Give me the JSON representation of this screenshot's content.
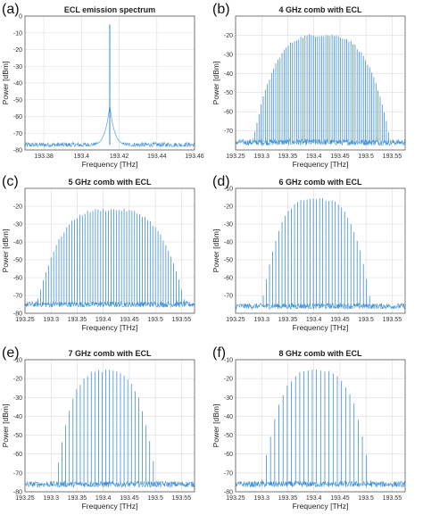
{
  "chart_data": [
    {
      "panel": "(a)",
      "type": "line",
      "title": "ECL emission spectrum",
      "xlabel": "Frequency [THz]",
      "ylabel": "Power [dBm]",
      "xlim": [
        193.37,
        193.46
      ],
      "ylim": [
        -80,
        0
      ],
      "xticks": [
        "193.38",
        "193.4",
        "193.42",
        "193.44",
        "193.46"
      ],
      "xtick_values": [
        193.38,
        193.4,
        193.42,
        193.44,
        193.46
      ],
      "yticks": [
        "0",
        "-10",
        "-20",
        "-30",
        "-40",
        "-50",
        "-60",
        "-70",
        "-80"
      ],
      "ytick_values": [
        0,
        -10,
        -20,
        -30,
        -40,
        -50,
        -60,
        -70,
        -80
      ],
      "grid": true,
      "line_center": 193.415,
      "line_peak": -5,
      "noise_floor": -77,
      "color": "#3d8fd6"
    },
    {
      "panel": "(b)",
      "type": "line",
      "title": "4 GHz comb with ECL",
      "xlabel": "Frequency [THz]",
      "ylabel": "Power [dBm]",
      "xlim": [
        193.25,
        193.575
      ],
      "ylim": [
        -80,
        -10
      ],
      "xticks": [
        "193.25",
        "193.3",
        "193.35",
        "193.4",
        "193.45",
        "193.5",
        "193.55"
      ],
      "xtick_values": [
        193.25,
        193.3,
        193.35,
        193.4,
        193.45,
        193.5,
        193.55
      ],
      "yticks": [
        "-20",
        "-30",
        "-40",
        "-50",
        "-60",
        "-70"
      ],
      "ytick_values": [
        -20,
        -30,
        -40,
        -50,
        -60,
        -70
      ],
      "grid": true,
      "spacing_ghz": 4,
      "comb_center": 193.415,
      "comb_range": [
        193.28,
        193.545
      ],
      "peak_power": -20,
      "noise_floor": -76,
      "color": "#3d8fd6"
    },
    {
      "panel": "(c)",
      "type": "line",
      "title": "5 GHz comb with ECL",
      "xlabel": "Frequency [THz]",
      "ylabel": "Power [dBm]",
      "xlim": [
        193.25,
        193.575
      ],
      "ylim": [
        -80,
        -10
      ],
      "xticks": [
        "193.25",
        "193.3",
        "193.35",
        "193.4",
        "193.45",
        "193.5",
        "193.55"
      ],
      "xtick_values": [
        193.25,
        193.3,
        193.35,
        193.4,
        193.45,
        193.5,
        193.55
      ],
      "yticks": [
        "-20",
        "-30",
        "-40",
        "-50",
        "-60",
        "-70",
        "-80"
      ],
      "ytick_values": [
        -20,
        -30,
        -40,
        -50,
        -60,
        -70,
        -80
      ],
      "grid": true,
      "spacing_ghz": 5,
      "comb_center": 193.415,
      "comb_range": [
        193.27,
        193.555
      ],
      "peak_power": -22,
      "noise_floor": -75,
      "color": "#3d8fd6"
    },
    {
      "panel": "(d)",
      "type": "line",
      "title": "6 GHz comb with ECL",
      "xlabel": "Frequency [THz]",
      "ylabel": "Power [dBm]",
      "xlim": [
        193.25,
        193.575
      ],
      "ylim": [
        -80,
        -10
      ],
      "xticks": [
        "193.25",
        "193.3",
        "193.35",
        "193.4",
        "193.45",
        "193.5",
        "193.55"
      ],
      "xtick_values": [
        193.25,
        193.3,
        193.35,
        193.4,
        193.45,
        193.5,
        193.55
      ],
      "yticks": [
        "-10",
        "-20",
        "-30",
        "-40",
        "-50",
        "-60",
        "-70"
      ],
      "ytick_values": [
        -10,
        -20,
        -30,
        -40,
        -50,
        -60,
        -70
      ],
      "grid": true,
      "spacing_ghz": 6,
      "comb_center": 193.405,
      "comb_range": [
        193.3,
        193.51
      ],
      "peak_power": -16,
      "noise_floor": -76,
      "color": "#3d8fd6"
    },
    {
      "panel": "(e)",
      "type": "line",
      "title": "7 GHz comb with ECL",
      "xlabel": "Frequency [THz]",
      "ylabel": "Power [dBm]",
      "xlim": [
        193.25,
        193.575
      ],
      "ylim": [
        -80,
        -10
      ],
      "xticks": [
        "193.25",
        "193.3",
        "193.35",
        "193.4",
        "193.45",
        "193.5",
        "193.55"
      ],
      "xtick_values": [
        193.25,
        193.3,
        193.35,
        193.4,
        193.45,
        193.5,
        193.55
      ],
      "yticks": [
        "-10",
        "-20",
        "-30",
        "-40",
        "-50",
        "-60",
        "-70",
        "-80"
      ],
      "ytick_values": [
        -10,
        -20,
        -30,
        -40,
        -50,
        -60,
        -70,
        -80
      ],
      "grid": true,
      "spacing_ghz": 7,
      "comb_center": 193.405,
      "comb_range": [
        193.31,
        193.505
      ],
      "peak_power": -16,
      "noise_floor": -76,
      "color": "#3d8fd6"
    },
    {
      "panel": "(f)",
      "type": "line",
      "title": "8 GHz comb with ECL",
      "xlabel": "Frequency [THz]",
      "ylabel": "Power [dBm]",
      "xlim": [
        193.25,
        193.575
      ],
      "ylim": [
        -80,
        -10
      ],
      "xticks": [
        "193.25",
        "193.3",
        "193.35",
        "193.4",
        "193.45",
        "193.5",
        "193.55"
      ],
      "xtick_values": [
        193.25,
        193.3,
        193.35,
        193.4,
        193.45,
        193.5,
        193.55
      ],
      "yticks": [
        "-10",
        "-20",
        "-30",
        "-40",
        "-50",
        "-60",
        "-70",
        "-80"
      ],
      "ytick_values": [
        -10,
        -20,
        -30,
        -40,
        -50,
        -60,
        -70,
        -80
      ],
      "grid": true,
      "spacing_ghz": 8,
      "comb_center": 193.405,
      "comb_range": [
        193.3,
        193.51
      ],
      "peak_power": -16,
      "noise_floor": -76,
      "color": "#3d8fd6"
    }
  ]
}
